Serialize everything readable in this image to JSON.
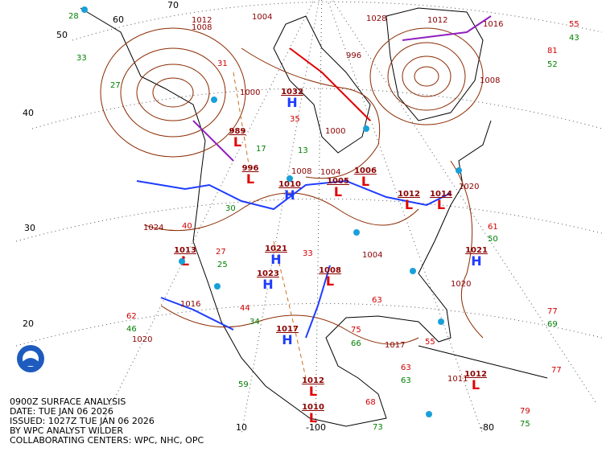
{
  "caption": [
    "0900Z SURFACE ANALYSIS",
    "DATE: TUE JAN 06 2026",
    "ISSUED: 1027Z TUE JAN 06 2026",
    "BY WPC ANALYST WILDER",
    "COLLABORATING CENTERS: WPC, NHC, OPC"
  ],
  "grid_labels": {
    "latitudes": [
      "70",
      "60",
      "50",
      "40",
      "30",
      "20"
    ],
    "longitudes": [
      "10",
      "-100",
      "-80"
    ]
  },
  "pressure_centers": [
    {
      "symbol": "H",
      "pressure": 1032
    },
    {
      "symbol": "L",
      "pressure": 989
    },
    {
      "symbol": "L",
      "pressure": 996
    },
    {
      "symbol": "H",
      "pressure": 1010
    },
    {
      "symbol": "L",
      "pressure": 1005
    },
    {
      "symbol": "L",
      "pressure": 1006
    },
    {
      "symbol": "L",
      "pressure": 1012
    },
    {
      "symbol": "L",
      "pressure": 1014
    },
    {
      "symbol": "H",
      "pressure": 1021
    },
    {
      "symbol": "H",
      "pressure": 1021
    },
    {
      "symbol": "H",
      "pressure": 1023
    },
    {
      "symbol": "L",
      "pressure": 1013
    },
    {
      "symbol": "L",
      "pressure": 1008
    },
    {
      "symbol": "H",
      "pressure": 1017
    },
    {
      "symbol": "L",
      "pressure": 1012
    },
    {
      "symbol": "L",
      "pressure": 1012
    },
    {
      "symbol": "L",
      "pressure": 1010
    }
  ],
  "isobar_labels": [
    1004,
    1012,
    1008,
    1028,
    1012,
    1016,
    1008,
    1020,
    1024,
    1020,
    1016,
    1020,
    1017,
    1011,
    1000,
    996,
    1000,
    1004,
    1008,
    1004
  ],
  "station_temperatures": [
    55,
    81,
    61,
    77,
    63,
    62,
    35,
    40,
    27,
    44,
    75,
    63,
    55,
    68,
    79,
    77,
    33,
    31
  ],
  "station_dewpoints": [
    43,
    52,
    50,
    69,
    46,
    28,
    33,
    27,
    17,
    13,
    30,
    25,
    34,
    59,
    66,
    63,
    73,
    75
  ]
}
